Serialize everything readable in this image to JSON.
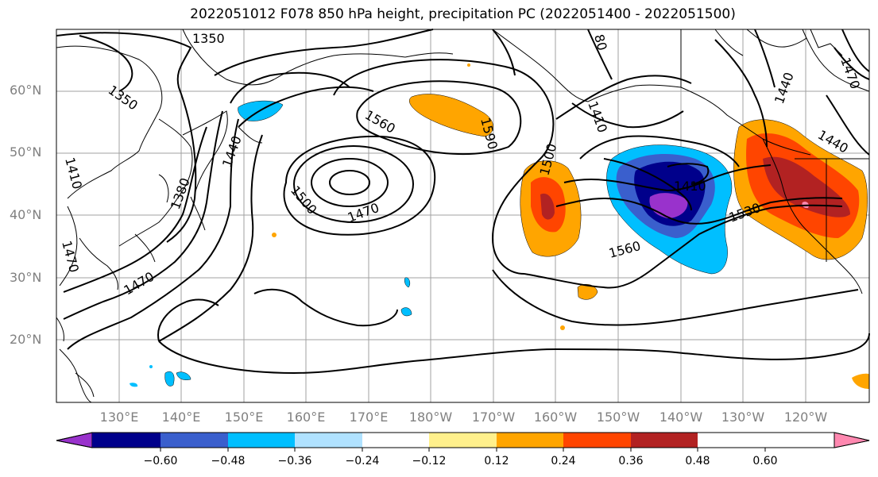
{
  "title": "2022051012 F078 850 hPa height, precipitation PC (2022051400 - 2022051500)",
  "lat_labels": [
    "60°N",
    "50°N",
    "40°N",
    "30°N",
    "20°N"
  ],
  "lon_labels": [
    "130°E",
    "140°E",
    "150°E",
    "160°E",
    "170°E",
    "180°W",
    "170°W",
    "160°W",
    "150°W",
    "140°W",
    "130°W",
    "120°W"
  ],
  "colorbar": {
    "ticks": [
      "−0.60",
      "−0.48",
      "−0.36",
      "−0.24",
      "−0.12",
      "0.12",
      "0.24",
      "0.36",
      "0.48",
      "0.60"
    ],
    "colors": [
      "#9932cc",
      "#00008b",
      "#3a5fcd",
      "#00bfff",
      "#b0e2ff",
      "#ffffff",
      "#fff08c",
      "#ffa500",
      "#ff4500",
      "#b22222",
      "#ff88b0"
    ]
  },
  "contour_labels": [
    "1350",
    "1350",
    "1440",
    "1380",
    "1410",
    "1470",
    "1500",
    "1470",
    "1560",
    "1590",
    "1500",
    "1410",
    "1530",
    "1560",
    "1440",
    "1440",
    "1470",
    "1470",
    "1410",
    "80",
    "1410"
  ],
  "colors": {
    "positive": "#ffa500",
    "strong_positive": "#ff4500",
    "max_positive": "#b22222",
    "negative": "#00bfff",
    "strong_negative": "#3a5fcd",
    "max_negative": "#00008b",
    "min_negative": "#9932cc",
    "contour": "#000000",
    "grid": "#a0a0a0"
  }
}
